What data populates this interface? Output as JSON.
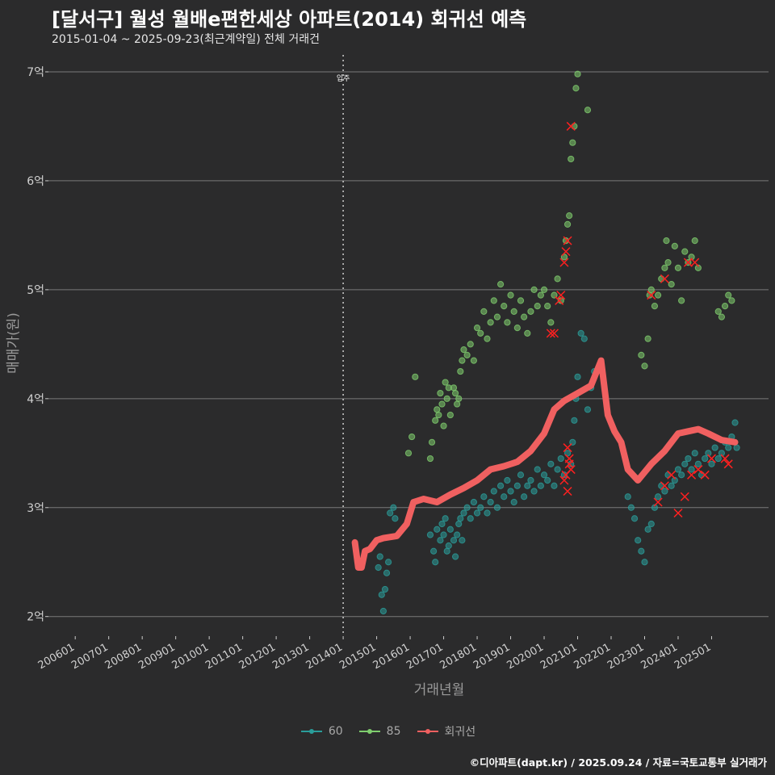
{
  "header": {
    "title": "[달서구] 월성 월배e편한세상 아파트(2014) 회귀선 예측",
    "subtitle": "2015-01-04 ~ 2025-09-23(최근계약일) 전체 거래건"
  },
  "caption": "©디아파트(dapt.kr) / 2025.09.24 / 자료=국토교통부 실거래가",
  "colors": {
    "background": "#2b2b2c",
    "grid": "#7a7a7a",
    "series_60": "#2a9d9a",
    "series_85": "#7fcd6e",
    "regression": "#f06060",
    "marker": "#ff2020"
  },
  "chart_data": {
    "type": "scatter",
    "xlabel": "거래년월",
    "ylabel": "매매가(원)",
    "x_ticks": [
      "200601",
      "200701",
      "200801",
      "200901",
      "201001",
      "201101",
      "201201",
      "201301",
      "201401",
      "201501",
      "201601",
      "201701",
      "201801",
      "201901",
      "202001",
      "202101",
      "202201",
      "202301",
      "202401",
      "202501"
    ],
    "y_ticks": [
      {
        "value": 2,
        "label": "2억"
      },
      {
        "value": 3,
        "label": "3억"
      },
      {
        "value": 4,
        "label": "4억"
      },
      {
        "value": 5,
        "label": "5억"
      },
      {
        "value": 6,
        "label": "6억"
      },
      {
        "value": 7,
        "label": "7억"
      }
    ],
    "ylim": [
      1.82,
      7.2
    ],
    "xlim": [
      2005.2,
      2026.7
    ],
    "annotation": {
      "x": 2014.0,
      "label": "입주"
    },
    "legend": [
      {
        "name": "60",
        "key": "series_60"
      },
      {
        "name": "85",
        "key": "series_85"
      },
      {
        "name": "회귀선",
        "key": "regression"
      }
    ],
    "series": [
      {
        "name": "60",
        "points": [
          [
            2015.05,
            2.45
          ],
          [
            2015.1,
            2.55
          ],
          [
            2015.15,
            2.2
          ],
          [
            2015.2,
            2.05
          ],
          [
            2015.25,
            2.25
          ],
          [
            2015.3,
            2.4
          ],
          [
            2015.35,
            2.5
          ],
          [
            2015.4,
            2.95
          ],
          [
            2015.5,
            3.0
          ],
          [
            2015.55,
            2.9
          ],
          [
            2016.6,
            2.75
          ],
          [
            2016.7,
            2.6
          ],
          [
            2016.75,
            2.5
          ],
          [
            2016.8,
            2.8
          ],
          [
            2016.9,
            2.7
          ],
          [
            2016.95,
            2.85
          ],
          [
            2017.0,
            2.75
          ],
          [
            2017.05,
            2.9
          ],
          [
            2017.1,
            2.6
          ],
          [
            2017.15,
            2.65
          ],
          [
            2017.2,
            2.8
          ],
          [
            2017.3,
            2.7
          ],
          [
            2017.35,
            2.55
          ],
          [
            2017.4,
            2.75
          ],
          [
            2017.45,
            2.85
          ],
          [
            2017.5,
            2.9
          ],
          [
            2017.55,
            2.7
          ],
          [
            2017.6,
            2.95
          ],
          [
            2017.7,
            3.0
          ],
          [
            2017.8,
            2.9
          ],
          [
            2017.9,
            3.05
          ],
          [
            2018.0,
            2.95
          ],
          [
            2018.1,
            3.0
          ],
          [
            2018.2,
            3.1
          ],
          [
            2018.3,
            2.95
          ],
          [
            2018.4,
            3.05
          ],
          [
            2018.5,
            3.15
          ],
          [
            2018.6,
            3.0
          ],
          [
            2018.7,
            3.2
          ],
          [
            2018.8,
            3.1
          ],
          [
            2018.9,
            3.25
          ],
          [
            2019.0,
            3.15
          ],
          [
            2019.1,
            3.05
          ],
          [
            2019.2,
            3.2
          ],
          [
            2019.3,
            3.3
          ],
          [
            2019.4,
            3.1
          ],
          [
            2019.5,
            3.2
          ],
          [
            2019.6,
            3.25
          ],
          [
            2019.7,
            3.15
          ],
          [
            2019.8,
            3.35
          ],
          [
            2019.9,
            3.2
          ],
          [
            2020.0,
            3.3
          ],
          [
            2020.1,
            3.25
          ],
          [
            2020.2,
            3.4
          ],
          [
            2020.3,
            3.2
          ],
          [
            2020.4,
            3.35
          ],
          [
            2020.5,
            3.45
          ],
          [
            2020.6,
            3.3
          ],
          [
            2020.7,
            3.5
          ],
          [
            2020.8,
            3.4
          ],
          [
            2020.85,
            3.6
          ],
          [
            2020.9,
            3.8
          ],
          [
            2020.95,
            4.0
          ],
          [
            2021.0,
            4.2
          ],
          [
            2021.1,
            4.6
          ],
          [
            2021.2,
            4.55
          ],
          [
            2021.3,
            3.9
          ],
          [
            2021.4,
            4.1
          ],
          [
            2021.5,
            4.25
          ],
          [
            2022.5,
            3.1
          ],
          [
            2022.6,
            3.0
          ],
          [
            2022.7,
            2.9
          ],
          [
            2022.8,
            2.7
          ],
          [
            2022.9,
            2.6
          ],
          [
            2023.0,
            2.5
          ],
          [
            2023.1,
            2.8
          ],
          [
            2023.2,
            2.85
          ],
          [
            2023.3,
            3.0
          ],
          [
            2023.4,
            3.1
          ],
          [
            2023.5,
            3.2
          ],
          [
            2023.6,
            3.15
          ],
          [
            2023.7,
            3.3
          ],
          [
            2023.8,
            3.2
          ],
          [
            2023.9,
            3.25
          ],
          [
            2024.0,
            3.35
          ],
          [
            2024.1,
            3.3
          ],
          [
            2024.2,
            3.4
          ],
          [
            2024.3,
            3.45
          ],
          [
            2024.4,
            3.35
          ],
          [
            2024.5,
            3.5
          ],
          [
            2024.6,
            3.4
          ],
          [
            2024.7,
            3.3
          ],
          [
            2024.8,
            3.45
          ],
          [
            2024.9,
            3.5
          ],
          [
            2025.0,
            3.4
          ],
          [
            2025.1,
            3.55
          ],
          [
            2025.2,
            3.45
          ],
          [
            2025.3,
            3.5
          ],
          [
            2025.4,
            3.6
          ],
          [
            2025.5,
            3.55
          ],
          [
            2025.6,
            3.65
          ],
          [
            2025.7,
            3.78
          ],
          [
            2025.75,
            3.55
          ]
        ]
      },
      {
        "name": "85",
        "points": [
          [
            2015.95,
            3.5
          ],
          [
            2016.05,
            3.65
          ],
          [
            2016.15,
            4.2
          ],
          [
            2016.6,
            3.45
          ],
          [
            2016.65,
            3.6
          ],
          [
            2016.75,
            3.8
          ],
          [
            2016.8,
            3.9
          ],
          [
            2016.85,
            3.85
          ],
          [
            2016.9,
            4.05
          ],
          [
            2016.95,
            3.95
          ],
          [
            2017.0,
            3.75
          ],
          [
            2017.05,
            4.15
          ],
          [
            2017.1,
            4.0
          ],
          [
            2017.15,
            4.1
          ],
          [
            2017.2,
            3.85
          ],
          [
            2017.3,
            4.1
          ],
          [
            2017.35,
            4.05
          ],
          [
            2017.4,
            3.95
          ],
          [
            2017.45,
            4.0
          ],
          [
            2017.5,
            4.25
          ],
          [
            2017.55,
            4.35
          ],
          [
            2017.6,
            4.45
          ],
          [
            2017.7,
            4.4
          ],
          [
            2017.8,
            4.5
          ],
          [
            2017.9,
            4.35
          ],
          [
            2018.0,
            4.65
          ],
          [
            2018.1,
            4.6
          ],
          [
            2018.2,
            4.8
          ],
          [
            2018.3,
            4.55
          ],
          [
            2018.4,
            4.7
          ],
          [
            2018.5,
            4.9
          ],
          [
            2018.6,
            4.75
          ],
          [
            2018.7,
            5.05
          ],
          [
            2018.8,
            4.85
          ],
          [
            2018.9,
            4.7
          ],
          [
            2019.0,
            4.95
          ],
          [
            2019.1,
            4.8
          ],
          [
            2019.2,
            4.65
          ],
          [
            2019.3,
            4.9
          ],
          [
            2019.4,
            4.75
          ],
          [
            2019.5,
            4.6
          ],
          [
            2019.6,
            4.8
          ],
          [
            2019.7,
            5.0
          ],
          [
            2019.8,
            4.85
          ],
          [
            2019.9,
            4.95
          ],
          [
            2020.0,
            5.0
          ],
          [
            2020.1,
            4.85
          ],
          [
            2020.2,
            4.7
          ],
          [
            2020.3,
            4.95
          ],
          [
            2020.4,
            5.1
          ],
          [
            2020.5,
            4.9
          ],
          [
            2020.6,
            5.3
          ],
          [
            2020.65,
            5.45
          ],
          [
            2020.7,
            5.6
          ],
          [
            2020.75,
            5.68
          ],
          [
            2020.8,
            6.2
          ],
          [
            2020.85,
            6.35
          ],
          [
            2020.9,
            6.5
          ],
          [
            2020.95,
            6.85
          ],
          [
            2021.0,
            6.98
          ],
          [
            2021.3,
            6.65
          ],
          [
            2022.9,
            4.4
          ],
          [
            2023.0,
            4.3
          ],
          [
            2023.1,
            4.55
          ],
          [
            2023.15,
            4.95
          ],
          [
            2023.2,
            5.0
          ],
          [
            2023.3,
            4.85
          ],
          [
            2023.4,
            4.95
          ],
          [
            2023.5,
            5.1
          ],
          [
            2023.6,
            5.2
          ],
          [
            2023.65,
            5.45
          ],
          [
            2023.7,
            5.25
          ],
          [
            2023.8,
            5.05
          ],
          [
            2023.9,
            5.4
          ],
          [
            2024.0,
            5.2
          ],
          [
            2024.1,
            4.9
          ],
          [
            2024.2,
            5.35
          ],
          [
            2024.3,
            5.25
          ],
          [
            2024.4,
            5.3
          ],
          [
            2024.5,
            5.45
          ],
          [
            2024.6,
            5.2
          ],
          [
            2025.2,
            4.8
          ],
          [
            2025.3,
            4.75
          ],
          [
            2025.4,
            4.85
          ],
          [
            2025.5,
            4.95
          ],
          [
            2025.6,
            4.9
          ]
        ]
      },
      {
        "name": "회귀선",
        "points": [
          [
            2014.35,
            2.68
          ],
          [
            2014.45,
            2.45
          ],
          [
            2014.55,
            2.45
          ],
          [
            2014.65,
            2.6
          ],
          [
            2014.8,
            2.62
          ],
          [
            2015.0,
            2.7
          ],
          [
            2015.2,
            2.72
          ],
          [
            2015.6,
            2.74
          ],
          [
            2015.9,
            2.85
          ],
          [
            2016.1,
            3.05
          ],
          [
            2016.4,
            3.08
          ],
          [
            2016.8,
            3.05
          ],
          [
            2017.2,
            3.12
          ],
          [
            2017.6,
            3.18
          ],
          [
            2018.0,
            3.25
          ],
          [
            2018.4,
            3.35
          ],
          [
            2018.8,
            3.38
          ],
          [
            2019.2,
            3.42
          ],
          [
            2019.6,
            3.52
          ],
          [
            2020.0,
            3.68
          ],
          [
            2020.3,
            3.9
          ],
          [
            2020.6,
            3.98
          ],
          [
            2021.0,
            4.05
          ],
          [
            2021.4,
            4.12
          ],
          [
            2021.7,
            4.35
          ],
          [
            2021.9,
            3.85
          ],
          [
            2022.1,
            3.7
          ],
          [
            2022.3,
            3.6
          ],
          [
            2022.5,
            3.35
          ],
          [
            2022.8,
            3.25
          ],
          [
            2023.2,
            3.4
          ],
          [
            2023.6,
            3.52
          ],
          [
            2024.0,
            3.68
          ],
          [
            2024.3,
            3.7
          ],
          [
            2024.6,
            3.72
          ],
          [
            2024.9,
            3.68
          ],
          [
            2025.3,
            3.62
          ],
          [
            2025.7,
            3.6
          ]
        ]
      }
    ],
    "highlighted_trades": [
      [
        2020.8,
        6.5
      ],
      [
        2020.7,
        5.45
      ],
      [
        2020.65,
        5.35
      ],
      [
        2020.6,
        5.25
      ],
      [
        2020.5,
        4.95
      ],
      [
        2020.45,
        4.9
      ],
      [
        2020.3,
        4.6
      ],
      [
        2020.2,
        4.6
      ],
      [
        2020.7,
        3.55
      ],
      [
        2020.75,
        3.45
      ],
      [
        2020.8,
        3.35
      ],
      [
        2020.65,
        3.3
      ],
      [
        2020.6,
        3.25
      ],
      [
        2020.7,
        3.15
      ],
      [
        2020.75,
        3.4
      ],
      [
        2023.2,
        4.95
      ],
      [
        2023.6,
        5.1
      ],
      [
        2024.3,
        5.25
      ],
      [
        2024.5,
        5.25
      ],
      [
        2023.4,
        3.05
      ],
      [
        2023.6,
        3.2
      ],
      [
        2023.8,
        3.3
      ],
      [
        2024.0,
        2.95
      ],
      [
        2024.2,
        3.1
      ],
      [
        2024.4,
        3.3
      ],
      [
        2024.6,
        3.35
      ],
      [
        2024.8,
        3.3
      ],
      [
        2025.0,
        3.45
      ],
      [
        2025.4,
        3.45
      ],
      [
        2025.5,
        3.4
      ]
    ]
  }
}
